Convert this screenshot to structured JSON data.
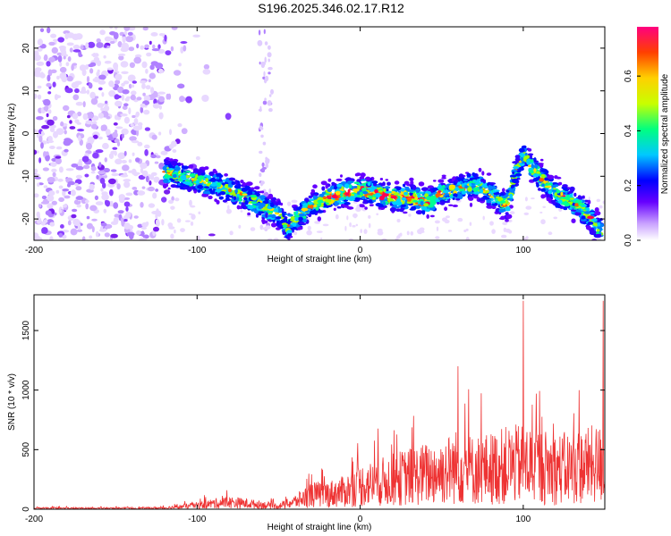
{
  "figure": {
    "title": "S196.2025.346.02.17.R12"
  },
  "chart_data": [
    {
      "type": "heatmap",
      "xlabel": "Height of straight line (km)",
      "ylabel": "Frequency (Hz)",
      "xlim": [
        -200,
        150
      ],
      "ylim": [
        -25,
        25
      ],
      "x_ticks": [
        -200,
        -100,
        0,
        100
      ],
      "y_ticks": [
        -20,
        -10,
        0,
        10,
        20
      ],
      "colorbar": {
        "label": "Normalized spectral amplitude",
        "range": [
          0,
          0.78
        ],
        "ticks": [
          0.0,
          0.2,
          0.4,
          0.6
        ]
      },
      "ridge": {
        "x": [
          -120,
          -110,
          -100,
          -90,
          -80,
          -70,
          -60,
          -50,
          -45,
          -40,
          -30,
          -20,
          -10,
          0,
          10,
          20,
          30,
          40,
          50,
          60,
          70,
          80,
          90,
          95,
          100,
          110,
          120,
          130,
          140,
          148
        ],
        "y": [
          -9,
          -10,
          -11,
          -12,
          -13,
          -15,
          -17,
          -19,
          -22,
          -20,
          -17,
          -15,
          -14,
          -13,
          -14,
          -15,
          -15,
          -16,
          -14,
          -13,
          -12,
          -14,
          -17,
          -10,
          -5,
          -10,
          -14,
          -16,
          -19,
          -23
        ]
      }
    },
    {
      "type": "line",
      "xlabel": "Height of straight line (km)",
      "ylabel": "SNR (10 * v/v)",
      "xlim": [
        -200,
        150
      ],
      "ylim": [
        0,
        1800
      ],
      "x_ticks": [
        -200,
        -100,
        0,
        100
      ],
      "y_ticks": [
        0,
        500,
        1000,
        1500
      ],
      "series": [
        {
          "color": "#ee3333",
          "envelope_x": [
            -200,
            -150,
            -120,
            -110,
            -100,
            -90,
            -80,
            -70,
            -60,
            -50,
            -40,
            -30,
            -20,
            -10,
            0,
            10,
            20,
            30,
            40,
            50,
            60,
            70,
            80,
            90,
            100,
            110,
            120,
            130,
            140,
            150
          ],
          "envelope_y": [
            15,
            15,
            20,
            40,
            60,
            90,
            110,
            90,
            70,
            50,
            120,
            230,
            240,
            280,
            380,
            420,
            470,
            520,
            560,
            600,
            680,
            620,
            650,
            700,
            720,
            690,
            640,
            660,
            700,
            720
          ],
          "spikes": [
            {
              "x": 60,
              "y": 1200
            },
            {
              "x": 100,
              "y": 1750
            },
            {
              "x": 149,
              "y": 1750
            }
          ]
        }
      ]
    }
  ]
}
